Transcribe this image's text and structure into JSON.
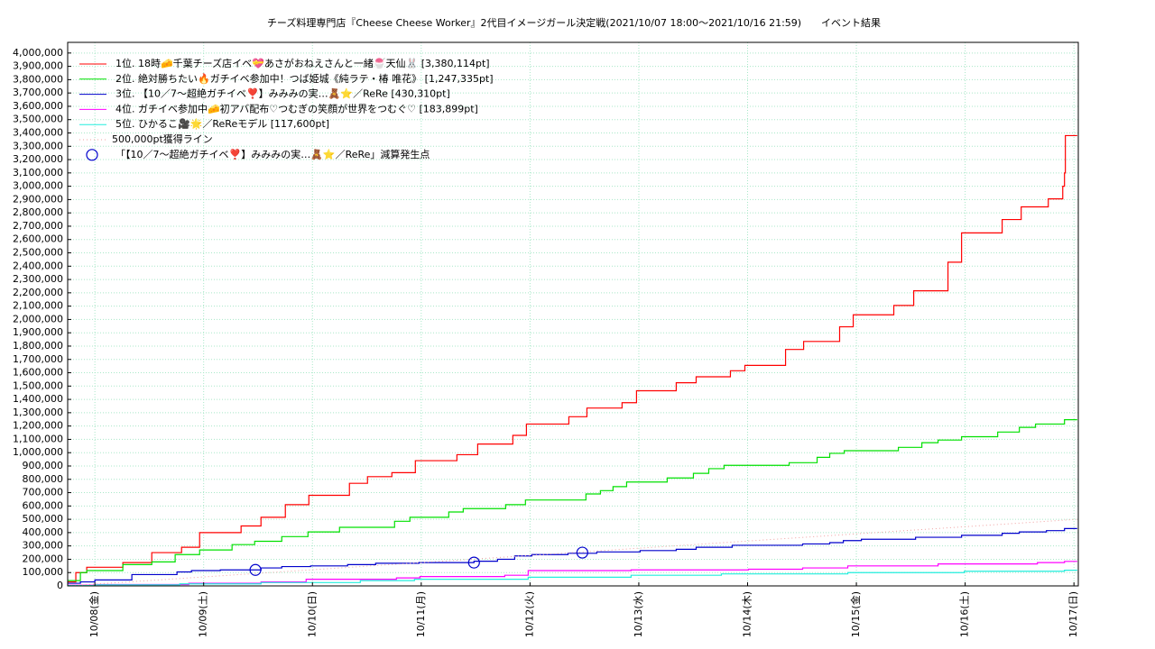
{
  "chart_data": {
    "type": "step",
    "title": "チーズ料理専門店『Cheese Cheese Worker』2代目イメージガール決定戦(2021/10/07 18:00～2021/10/16 21:59)　　イベント結果",
    "xlim": [
      0.75,
      10.04
    ],
    "ylim": [
      0,
      4080000
    ],
    "grid": true,
    "legend": "upper left",
    "xticks": [
      {
        "value": 1,
        "label": "10/08(金)"
      },
      {
        "value": 2,
        "label": "10/09(土)"
      },
      {
        "value": 3,
        "label": "10/10(日)"
      },
      {
        "value": 4,
        "label": "10/11(月)"
      },
      {
        "value": 5,
        "label": "10/12(火)"
      },
      {
        "value": 6,
        "label": "10/13(水)"
      },
      {
        "value": 7,
        "label": "10/14(木)"
      },
      {
        "value": 8,
        "label": "10/15(金)"
      },
      {
        "value": 9,
        "label": "10/16(土)"
      },
      {
        "value": 10,
        "label": "10/17(日)"
      }
    ],
    "yticks": [
      0,
      {
        "value": 100000,
        "label": "100,000"
      },
      {
        "value": 200000,
        "label": "200,000"
      },
      {
        "value": 300000,
        "label": "300,000"
      },
      {
        "value": 400000,
        "label": "400,000"
      },
      {
        "value": 500000,
        "label": "500,000"
      },
      {
        "value": 600000,
        "label": "600,000"
      },
      {
        "value": 700000,
        "label": "700,000"
      },
      {
        "value": 800000,
        "label": "800,000"
      },
      {
        "value": 900000,
        "label": "900,000"
      },
      {
        "value": 1000000,
        "label": "1,000,000"
      },
      {
        "value": 1100000,
        "label": "1,100,000"
      },
      {
        "value": 1200000,
        "label": "1,200,000"
      },
      {
        "value": 1300000,
        "label": "1,300,000"
      },
      {
        "value": 1400000,
        "label": "1,400,000"
      },
      {
        "value": 1500000,
        "label": "1,500,000"
      },
      {
        "value": 1600000,
        "label": "1,600,000"
      },
      {
        "value": 1700000,
        "label": "1,700,000"
      },
      {
        "value": 1800000,
        "label": "1,800,000"
      },
      {
        "value": 1900000,
        "label": "1,900,000"
      },
      {
        "value": 2000000,
        "label": "2,000,000"
      },
      {
        "value": 2100000,
        "label": "2,100,000"
      },
      {
        "value": 2200000,
        "label": "2,200,000"
      },
      {
        "value": 2300000,
        "label": "2,300,000"
      },
      {
        "value": 2400000,
        "label": "2,400,000"
      },
      {
        "value": 2500000,
        "label": "2,500,000"
      },
      {
        "value": 2600000,
        "label": "2,600,000"
      },
      {
        "value": 2700000,
        "label": "2,700,000"
      },
      {
        "value": 2800000,
        "label": "2,800,000"
      },
      {
        "value": 2900000,
        "label": "2,900,000"
      },
      {
        "value": 3000000,
        "label": "3,000,000"
      },
      {
        "value": 3100000,
        "label": "3,100,000"
      },
      {
        "value": 3200000,
        "label": "3,200,000"
      },
      {
        "value": 3300000,
        "label": "3,300,000"
      },
      {
        "value": 3400000,
        "label": "3,400,000"
      },
      {
        "value": 3500000,
        "label": "3,500,000"
      },
      {
        "value": 3600000,
        "label": "3,600,000"
      },
      {
        "value": 3700000,
        "label": "3,700,000"
      },
      {
        "value": 3800000,
        "label": "3,800,000"
      },
      {
        "value": 3900000,
        "label": "3,900,000"
      },
      {
        "value": 4000000,
        "label": "4,000,000"
      }
    ],
    "series": [
      {
        "name": "1位. 18時🧀千葉チーズ店イベ💝あさがおねえさんと一緒🍧天仙🐰 [3,380,114pt]",
        "color": "#ff0000",
        "x": [
          0.75,
          0.825,
          0.925,
          1.257,
          1.523,
          1.797,
          1.963,
          2.344,
          2.527,
          2.751,
          2.967,
          3.34,
          3.506,
          3.73,
          3.946,
          4.328,
          4.519,
          4.842,
          4.967,
          5.357,
          5.523,
          5.846,
          5.979,
          6.344,
          6.527,
          6.842,
          6.975,
          7.349,
          7.515,
          7.846,
          7.971,
          8.344,
          8.527,
          8.842,
          8.967,
          9.34,
          9.515,
          9.764,
          9.897,
          9.913,
          9.921,
          10.03
        ],
        "values": [
          30000,
          100000,
          140000,
          175000,
          250000,
          290000,
          400000,
          450000,
          515000,
          610000,
          680000,
          770000,
          820000,
          850000,
          940000,
          985000,
          1065000,
          1130000,
          1215000,
          1270000,
          1335000,
          1375000,
          1465000,
          1525000,
          1570000,
          1615000,
          1655000,
          1775000,
          1835000,
          1945000,
          2035000,
          2105000,
          2215000,
          2430000,
          2650000,
          2750000,
          2845000,
          2905000,
          3000000,
          3100000,
          3380114,
          3380114
        ]
      },
      {
        "name": "2位. 絶対勝ちたい🔥ガチイベ参加中！つば姫城《純ラテ・椿 唯花》 [1,247,335pt]",
        "color": "#00e000",
        "x": [
          0.75,
          0.867,
          0.925,
          1.257,
          1.523,
          1.738,
          1.963,
          2.261,
          2.469,
          2.718,
          2.959,
          3.249,
          3.755,
          3.896,
          4.253,
          4.386,
          4.776,
          4.958,
          5.514,
          5.647,
          5.763,
          5.888,
          6.261,
          6.502,
          6.643,
          6.784,
          7.382,
          7.639,
          7.755,
          7.888,
          8.386,
          8.602,
          8.751,
          8.967,
          9.299,
          9.498,
          9.647,
          9.913,
          10.03
        ],
        "values": [
          40000,
          100000,
          115000,
          160000,
          180000,
          235000,
          270000,
          310000,
          335000,
          370000,
          405000,
          440000,
          485000,
          515000,
          555000,
          580000,
          610000,
          645000,
          690000,
          715000,
          745000,
          780000,
          810000,
          845000,
          880000,
          905000,
          925000,
          965000,
          995000,
          1015000,
          1040000,
          1075000,
          1095000,
          1120000,
          1155000,
          1190000,
          1215000,
          1247335,
          1247335
        ]
      },
      {
        "name": "3位. 【10／7〜超絶ガチイベ❣️】みみみの実…🧸⭐／ReRe [430,310pt]",
        "color": "#0000cc",
        "x": [
          0.75,
          0.867,
          1.0,
          1.34,
          1.755,
          1.888,
          2.153,
          2.527,
          2.718,
          2.983,
          3.323,
          3.581,
          3.979,
          4.485,
          4.701,
          4.859,
          5.017,
          5.349,
          5.614,
          6.012,
          6.344,
          6.527,
          6.859,
          7.506,
          7.755,
          7.88,
          8.046,
          8.544,
          8.967,
          9.34,
          9.498,
          9.747,
          9.913,
          10.03
        ],
        "values": [
          20000,
          30000,
          45000,
          85000,
          105000,
          115000,
          120000,
          135000,
          145000,
          150000,
          160000,
          170000,
          175000,
          185000,
          200000,
          225000,
          235000,
          245000,
          255000,
          265000,
          275000,
          290000,
          305000,
          315000,
          325000,
          340000,
          350000,
          365000,
          380000,
          395000,
          405000,
          415000,
          430310,
          430310
        ]
      },
      {
        "name": "4位. ガチイベ参加中🧀初アバ配布♡つむぎの笑顔が世界をつむぐ♡ [183,899pt]",
        "color": "#ff00ff",
        "x": [
          0.75,
          1.0,
          1.863,
          2.527,
          2.942,
          3.772,
          3.988,
          4.768,
          4.983,
          5.929,
          7.008,
          7.506,
          7.921,
          8.751,
          9.664,
          9.913,
          10.03
        ],
        "values": [
          5000,
          10000,
          20000,
          30000,
          50000,
          60000,
          70000,
          80000,
          115000,
          120000,
          125000,
          135000,
          150000,
          165000,
          175000,
          183899,
          183899
        ]
      },
      {
        "name": "5位. ひかるこ🎥🌟／ReReモデル [117,600pt]",
        "color": "#22eedd",
        "x": [
          0.75,
          1.0,
          1.78,
          2.527,
          3.44,
          3.938,
          4.983,
          5.929,
          6.759,
          7.921,
          8.992,
          9.913,
          10.03
        ],
        "values": [
          3000,
          8000,
          15000,
          25000,
          40000,
          50000,
          65000,
          80000,
          90000,
          100000,
          110000,
          117600,
          117600
        ]
      },
      {
        "name": "500,000pt獲得ライン",
        "color": "#f0a0a0",
        "dash": "dotted",
        "x": [
          0.75,
          10.03
        ],
        "values": [
          0,
          500000
        ]
      },
      {
        "name": "「【10／7〜超絶ガチイベ❣️】みみみの実…🧸⭐／ReRe」減算発生点",
        "color": "#0000cc",
        "marker": "circle",
        "x": [
          2.476,
          4.485,
          5.481
        ],
        "values": [
          120000,
          175000,
          250000
        ]
      }
    ]
  }
}
